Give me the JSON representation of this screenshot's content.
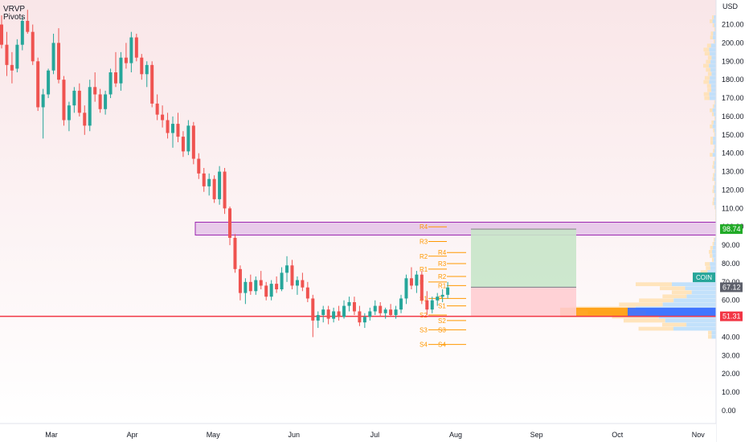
{
  "indicators": [
    "VRVP",
    "Pivots"
  ],
  "currency_label": "USD",
  "ticker_tag": "COIN",
  "colors": {
    "up": "#26a69a",
    "down": "#ef5350",
    "support_line": "#f23645",
    "zone_fill": "#e1bee7",
    "zone_stroke": "#9c27b0",
    "profit_fill": "#c8e6c9",
    "loss_fill": "#ffcdd2",
    "pivot": "#ff9800",
    "vp_up": "#bbdefb",
    "vp_down": "#ffe0b2",
    "poc_blue": "#2962ff",
    "poc_orange": "#ff9800",
    "price_tag_green": "#22ab28",
    "price_tag_red": "#f23645",
    "price_tag_dark": "#5d606b",
    "coin_tag": "#26a69a"
  },
  "chart_data": {
    "type": "candlestick",
    "x_ticks": [
      "Mar",
      "Apr",
      "May",
      "Jun",
      "Jul",
      "Aug",
      "Sep",
      "Oct",
      "Nov"
    ],
    "y_ticks": [
      "0.00",
      "10.00",
      "20.00",
      "30.00",
      "40.00",
      "50.00",
      "60.00",
      "70.00",
      "80.00",
      "90.00",
      "100.00",
      "110.00",
      "120.00",
      "130.00",
      "140.00",
      "150.00",
      "160.00",
      "170.00",
      "180.00",
      "190.00",
      "200.00",
      "210.00"
    ],
    "ylim": [
      -10,
      226
    ],
    "x_month_index_range": [
      -2.12,
      8.62
    ],
    "candles": [
      [
        210,
        215,
        197,
        199
      ],
      [
        199,
        206,
        182,
        188
      ],
      [
        188,
        195,
        178,
        185
      ],
      [
        186,
        202,
        184,
        199
      ],
      [
        199,
        214,
        196,
        212
      ],
      [
        212,
        218,
        205,
        206
      ],
      [
        206,
        210,
        188,
        190
      ],
      [
        190,
        192,
        163,
        165
      ],
      [
        165,
        175,
        148,
        172
      ],
      [
        172,
        186,
        170,
        185
      ],
      [
        185,
        205,
        183,
        200
      ],
      [
        200,
        208,
        178,
        180
      ],
      [
        180,
        182,
        155,
        158
      ],
      [
        158,
        168,
        152,
        166
      ],
      [
        166,
        176,
        162,
        174
      ],
      [
        174,
        178,
        160,
        162
      ],
      [
        162,
        166,
        150,
        155
      ],
      [
        155,
        180,
        152,
        176
      ],
      [
        176,
        184,
        168,
        172
      ],
      [
        172,
        175,
        162,
        164
      ],
      [
        164,
        174,
        161,
        172
      ],
      [
        172,
        186,
        170,
        184
      ],
      [
        184,
        195,
        176,
        178
      ],
      [
        178,
        195,
        174,
        192
      ],
      [
        192,
        200,
        186,
        189
      ],
      [
        189,
        206,
        184,
        203
      ],
      [
        203,
        205,
        190,
        192
      ],
      [
        192,
        194,
        180,
        183
      ],
      [
        183,
        190,
        176,
        188
      ],
      [
        188,
        190,
        165,
        167
      ],
      [
        167,
        172,
        158,
        161
      ],
      [
        161,
        166,
        154,
        158
      ],
      [
        158,
        162,
        148,
        151
      ],
      [
        151,
        160,
        143,
        156
      ],
      [
        156,
        162,
        146,
        149
      ],
      [
        149,
        152,
        138,
        141
      ],
      [
        141,
        158,
        139,
        155
      ],
      [
        155,
        157,
        134,
        137
      ],
      [
        137,
        140,
        126,
        129
      ],
      [
        129,
        132,
        119,
        122
      ],
      [
        122,
        129,
        117,
        126
      ],
      [
        126,
        128,
        113,
        115
      ],
      [
        115,
        133,
        112,
        130
      ],
      [
        130,
        132,
        107,
        110
      ],
      [
        110,
        111,
        90,
        94
      ],
      [
        94,
        96,
        75,
        77
      ],
      [
        77,
        79,
        60,
        64
      ],
      [
        64,
        72,
        58,
        70
      ],
      [
        70,
        74,
        63,
        65
      ],
      [
        65,
        73,
        63,
        71
      ],
      [
        71,
        76,
        66,
        68
      ],
      [
        68,
        70,
        60,
        62
      ],
      [
        62,
        71,
        60,
        69
      ],
      [
        69,
        73,
        64,
        66
      ],
      [
        66,
        78,
        65,
        75
      ],
      [
        75,
        84,
        70,
        79
      ],
      [
        79,
        82,
        66,
        68
      ],
      [
        68,
        73,
        63,
        71
      ],
      [
        71,
        75,
        65,
        67
      ],
      [
        67,
        70,
        59,
        61
      ],
      [
        61,
        63,
        40,
        49
      ],
      [
        49,
        54,
        45,
        52
      ],
      [
        52,
        57,
        48,
        55
      ],
      [
        55,
        57,
        47,
        50
      ],
      [
        50,
        56,
        48,
        54
      ],
      [
        54,
        57,
        49,
        51
      ],
      [
        51,
        60,
        50,
        57
      ],
      [
        57,
        62,
        54,
        59
      ],
      [
        59,
        62,
        52,
        54
      ],
      [
        54,
        57,
        46,
        48
      ],
      [
        48,
        53,
        45,
        51
      ],
      [
        51,
        56,
        49,
        54
      ],
      [
        54,
        60,
        52,
        57
      ],
      [
        57,
        59,
        51,
        53
      ],
      [
        53,
        56,
        50,
        55
      ],
      [
        55,
        58,
        51,
        52
      ],
      [
        52,
        57,
        50,
        55
      ],
      [
        55,
        63,
        53,
        61
      ],
      [
        61,
        74,
        58,
        72
      ],
      [
        72,
        78,
        66,
        68
      ],
      [
        68,
        76,
        64,
        74
      ],
      [
        74,
        76,
        58,
        60
      ],
      [
        60,
        65,
        52,
        55
      ],
      [
        55,
        62,
        53,
        60
      ],
      [
        60,
        64,
        57,
        62
      ],
      [
        62,
        66,
        59,
        63
      ],
      [
        63,
        70,
        61,
        67
      ]
    ],
    "support_line": 51.31,
    "resistance_zone": [
      95.5,
      102.5
    ],
    "position": {
      "entry": 67.12,
      "target": 98.74,
      "stop": 51.31
    },
    "pivots": [
      {
        "label": "R4",
        "value": 100
      },
      {
        "label": "R3",
        "value": 92
      },
      {
        "label": "R2",
        "value": 84
      },
      {
        "label": "R1",
        "value": 77
      },
      {
        "label": "P",
        "value": 70
      },
      {
        "label": "S1",
        "value": 61
      },
      {
        "label": "S2",
        "value": 52
      },
      {
        "label": "S3",
        "value": 44
      },
      {
        "label": "S4",
        "value": 36
      },
      {
        "label": "R4",
        "value": 86
      },
      {
        "label": "R3",
        "value": 80
      },
      {
        "label": "R2",
        "value": 73
      },
      {
        "label": "R1",
        "value": 68
      },
      {
        "label": "P",
        "value": 61
      },
      {
        "label": "S1",
        "value": 57
      },
      {
        "label": "S2",
        "value": 49
      },
      {
        "label": "S3",
        "value": 44
      },
      {
        "label": "S4",
        "value": 36
      }
    ],
    "price_labels": [
      {
        "value": 98.74,
        "text": "98.74",
        "kind": "green"
      },
      {
        "value": 67.12,
        "text": "67.12",
        "kind": "dark"
      },
      {
        "value": 51.31,
        "text": "51.31",
        "kind": "red"
      }
    ]
  }
}
